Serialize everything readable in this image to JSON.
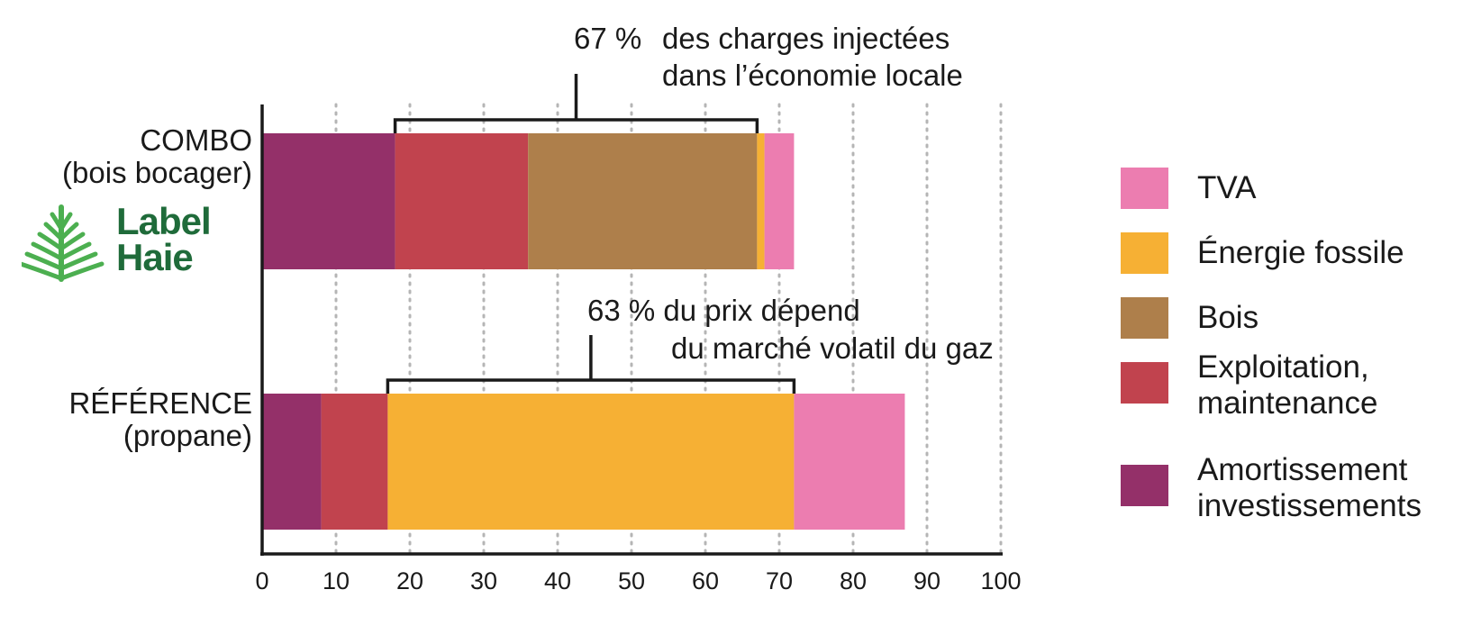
{
  "chart_data": {
    "type": "bar",
    "orientation": "horizontal",
    "stacked": true,
    "categories": [
      {
        "line1": "COMBO",
        "line2": "(bois bocager)"
      },
      {
        "line1": "RÉFÉRENCE",
        "line2": "(propane)"
      }
    ],
    "series": [
      {
        "name_lines": [
          "Amortissement",
          "investissements"
        ],
        "color": "#943069",
        "values": [
          18,
          8
        ]
      },
      {
        "name_lines": [
          "Exploitation,",
          "maintenance"
        ],
        "color": "#c1434e",
        "values": [
          18,
          9
        ]
      },
      {
        "name_lines": [
          "Bois"
        ],
        "color": "#ae7f4b",
        "values": [
          31,
          0
        ]
      },
      {
        "name_lines": [
          "Énergie fossile"
        ],
        "color": "#f6b034",
        "values": [
          1,
          55
        ]
      },
      {
        "name_lines": [
          "TVA"
        ],
        "color": "#ec7db0",
        "values": [
          4,
          15
        ]
      }
    ],
    "legend_order": [
      4,
      3,
      2,
      1,
      0
    ],
    "legend_position": "right",
    "xlim": [
      0,
      100
    ],
    "xticks": [
      0,
      10,
      20,
      30,
      40,
      50,
      60,
      70,
      80,
      90,
      100
    ],
    "grid": "vertical dotted",
    "annotations": [
      {
        "pct": "67 %",
        "line1": "des charges injectées",
        "line2": "dans l’économie locale",
        "bracket_from": 18,
        "bracket_to": 67
      },
      {
        "line1": "63 % du prix dépend",
        "line2": "du marché volatil du gaz",
        "bracket_from": 17,
        "bracket_to": 72
      }
    ]
  },
  "logo": {
    "line1": "Label",
    "line2": "Haie",
    "color": "#4caf50",
    "text_color": "#1f6b3a"
  }
}
